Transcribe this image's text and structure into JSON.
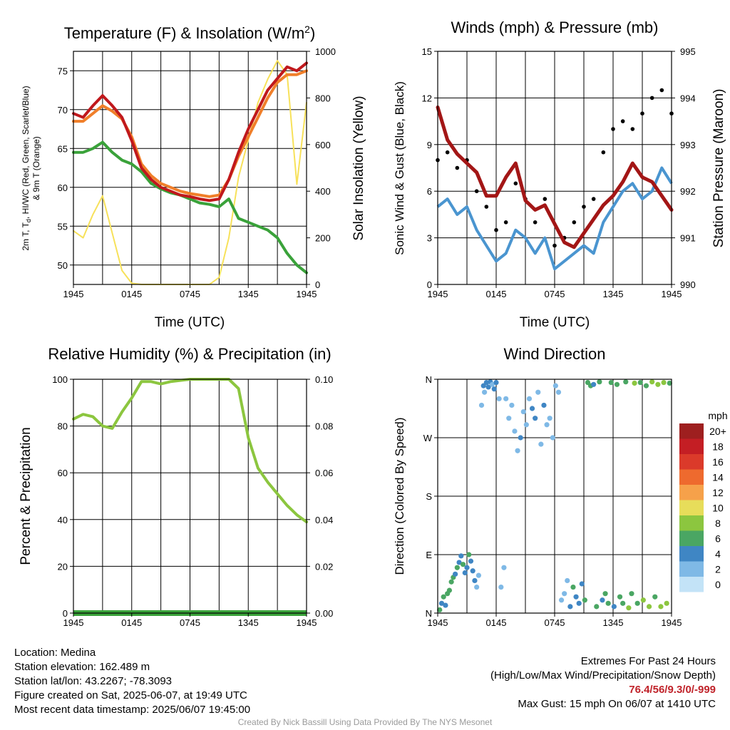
{
  "panels": {
    "temp": {
      "title": "Temperature (F) & Insolation (W/m",
      "title_sup": "2",
      "title_end": ")",
      "ylabel_left_1": "2m T, T",
      "ylabel_left_sub": "d",
      "ylabel_left_2": ", HI/WC (Red, Green, Scarlet/Blue)",
      "ylabel_left_3": "& 9m T (Orange)",
      "ylabel_right": "Solar Insolation (Yellow)",
      "xlabel": "Time (UTC)"
    },
    "winds": {
      "title": "Winds (mph) & Pressure (mb)",
      "ylabel_left": "Sonic Wind & Gust (Blue, Black)",
      "ylabel_right": "Station Pressure (Maroon)",
      "xlabel": "Time (UTC)"
    },
    "rh": {
      "title": "Relative Humidity (%) & Precipitation (in)",
      "ylabel_left": "Percent & Precipitation"
    },
    "dir": {
      "title": "Wind Direction",
      "ylabel_left": "Direction (Colored By Speed)"
    }
  },
  "chart_data": [
    {
      "type": "line",
      "title": "Temperature (F) & Insolation (W/m2)",
      "xlabel": "Time (UTC)",
      "x_ticks": [
        "1945",
        "0145",
        "0745",
        "1345",
        "1945"
      ],
      "x_hours_since_start": [
        0,
        1,
        2,
        3,
        4,
        5,
        6,
        7,
        8,
        9,
        10,
        11,
        12,
        13,
        14,
        15,
        16,
        17,
        18,
        19,
        20,
        21,
        22,
        23,
        24
      ],
      "ylim": [
        47.5,
        77.5
      ],
      "y_ticks": [
        50,
        55,
        60,
        65,
        70,
        75
      ],
      "y2lim": [
        0,
        1000
      ],
      "y2_ticks": [
        0,
        200,
        400,
        600,
        800,
        1000
      ],
      "series": [
        {
          "name": "2m T (Red)",
          "color": "#c0181c",
          "axis": "left",
          "values": [
            69.5,
            69.0,
            70.5,
            71.8,
            70.5,
            69.0,
            66.0,
            62.5,
            61.0,
            60.0,
            59.5,
            59.0,
            58.8,
            58.5,
            58.3,
            58.5,
            61.0,
            64.5,
            67.5,
            70.0,
            72.5,
            74.0,
            75.5,
            75.0,
            76.0
          ]
        },
        {
          "name": "9m T (Orange)",
          "color": "#f07f2a",
          "axis": "left",
          "values": [
            68.5,
            68.5,
            69.5,
            70.5,
            69.8,
            68.8,
            66.5,
            63.0,
            61.5,
            60.5,
            60.0,
            59.5,
            59.2,
            59.0,
            58.8,
            59.0,
            61.0,
            64.0,
            66.5,
            69.0,
            71.5,
            73.5,
            74.5,
            74.5,
            75.0
          ]
        },
        {
          "name": "Td (Green)",
          "color": "#3aa23a",
          "axis": "left",
          "values": [
            64.5,
            64.5,
            65.0,
            65.8,
            64.5,
            63.5,
            63.0,
            62.0,
            60.5,
            59.8,
            59.3,
            59.0,
            58.5,
            58.0,
            57.8,
            57.5,
            58.5,
            56.0,
            55.5,
            55.0,
            54.5,
            53.5,
            51.5,
            50.0,
            49.0
          ]
        },
        {
          "name": "Solar Insolation (Yellow)",
          "color": "#f7e15a",
          "axis": "right",
          "values": [
            230,
            200,
            300,
            380,
            220,
            60,
            5,
            0,
            0,
            0,
            0,
            0,
            0,
            0,
            0,
            30,
            200,
            460,
            620,
            780,
            880,
            960,
            900,
            430,
            780
          ]
        }
      ]
    },
    {
      "type": "line",
      "title": "Winds (mph) & Pressure (mb)",
      "xlabel": "Time (UTC)",
      "x_ticks": [
        "1945",
        "0145",
        "0745",
        "1345",
        "1945"
      ],
      "x_hours_since_start": [
        0,
        1,
        2,
        3,
        4,
        5,
        6,
        7,
        8,
        9,
        10,
        11,
        12,
        13,
        14,
        15,
        16,
        17,
        18,
        19,
        20,
        21,
        22,
        23,
        24
      ],
      "ylim": [
        0,
        15
      ],
      "y_ticks": [
        0,
        3,
        6,
        9,
        12,
        15
      ],
      "y2lim": [
        990,
        995
      ],
      "y2_ticks": [
        990,
        991,
        992,
        993,
        994,
        995
      ],
      "series": [
        {
          "name": "Sonic Wind (Blue)",
          "color": "#4a95d0",
          "axis": "left",
          "values": [
            5.0,
            5.5,
            4.5,
            5.0,
            3.5,
            2.5,
            1.5,
            2.0,
            3.5,
            3.0,
            2.0,
            3.0,
            1.0,
            1.5,
            2.0,
            2.5,
            2.0,
            4.0,
            5.0,
            6.0,
            6.5,
            5.5,
            6.0,
            7.5,
            6.5
          ]
        },
        {
          "name": "Gust (Black)",
          "color": "#000000",
          "axis": "left",
          "values": [
            8.0,
            8.5,
            7.5,
            8.0,
            6.0,
            5.0,
            3.5,
            4.0,
            6.5,
            5.5,
            4.0,
            5.5,
            2.5,
            3.0,
            4.0,
            5.0,
            5.5,
            8.5,
            10.0,
            10.5,
            10.0,
            11.0,
            12.0,
            12.5,
            11.0
          ]
        },
        {
          "name": "Station Pressure (Maroon)",
          "color": "#a31616",
          "axis": "right",
          "values": [
            993.8,
            993.1,
            992.8,
            992.6,
            992.4,
            991.9,
            991.9,
            992.3,
            992.6,
            991.8,
            991.6,
            991.7,
            991.3,
            990.9,
            990.8,
            991.1,
            991.4,
            991.7,
            991.9,
            992.2,
            992.6,
            992.3,
            992.2,
            991.9,
            991.6
          ]
        }
      ]
    },
    {
      "type": "line",
      "title": "Relative Humidity (%) & Precipitation (in)",
      "x_ticks": [
        "1945",
        "0145",
        "0745",
        "1345",
        "1945"
      ],
      "x_hours_since_start": [
        0,
        1,
        2,
        3,
        4,
        5,
        6,
        7,
        8,
        9,
        10,
        11,
        12,
        13,
        14,
        15,
        16,
        17,
        18,
        19,
        20,
        21,
        22,
        23,
        24
      ],
      "ylim": [
        0,
        100
      ],
      "y_ticks": [
        0,
        20,
        40,
        60,
        80,
        100
      ],
      "y2lim": [
        0,
        0.1
      ],
      "y2_ticks": [
        "0.00",
        "0.02",
        "0.04",
        "0.06",
        "0.08",
        "0.10"
      ],
      "series": [
        {
          "name": "Relative Humidity",
          "color": "#8cc63f",
          "axis": "left",
          "values": [
            83,
            85,
            84,
            80,
            79,
            86,
            92,
            99,
            99,
            98,
            99,
            99.5,
            100,
            100,
            100,
            100,
            100,
            96,
            75,
            62,
            56,
            51,
            46,
            42,
            39
          ]
        },
        {
          "name": "Precipitation",
          "color": "#3aa23a",
          "axis": "right",
          "values": [
            0,
            0,
            0,
            0,
            0,
            0,
            0,
            0,
            0,
            0,
            0,
            0,
            0,
            0,
            0,
            0,
            0,
            0,
            0,
            0,
            0,
            0,
            0,
            0,
            0
          ]
        }
      ]
    },
    {
      "type": "scatter",
      "title": "Wind Direction",
      "x_ticks": [
        "1945",
        "0145",
        "0745",
        "1345",
        "1945"
      ],
      "y_ticks": [
        "N",
        "E",
        "S",
        "W",
        "N"
      ],
      "ylim": [
        0,
        360
      ],
      "legend_title": "mph",
      "legend_labels": [
        "20+",
        "18",
        "16",
        "14",
        "12",
        "10",
        "8",
        "6",
        "4",
        "2",
        "0"
      ],
      "legend_colors": [
        "#9e1f1f",
        "#c41e24",
        "#db3a2a",
        "#ee6a2e",
        "#f6a14a",
        "#e7dd5a",
        "#8cc63f",
        "#4aa663",
        "#3f86c4",
        "#7fb9e6",
        "#c3e3f7"
      ],
      "points_hour_deg_mph": [
        [
          0.2,
          5,
          6
        ],
        [
          0.4,
          15,
          4
        ],
        [
          0.6,
          25,
          6
        ],
        [
          0.8,
          12,
          4
        ],
        [
          1.0,
          30,
          5
        ],
        [
          1.2,
          35,
          6
        ],
        [
          1.4,
          48,
          5
        ],
        [
          1.6,
          55,
          6
        ],
        [
          1.8,
          60,
          4
        ],
        [
          2.0,
          70,
          5
        ],
        [
          2.2,
          78,
          4
        ],
        [
          2.4,
          88,
          3
        ],
        [
          2.6,
          75,
          5
        ],
        [
          2.8,
          62,
          4
        ],
        [
          3.0,
          70,
          3
        ],
        [
          3.2,
          90,
          5
        ],
        [
          3.4,
          80,
          4
        ],
        [
          3.6,
          65,
          3
        ],
        [
          3.8,
          50,
          3
        ],
        [
          4.0,
          40,
          2
        ],
        [
          4.2,
          58,
          2
        ],
        [
          4.5,
          320,
          2
        ],
        [
          4.7,
          350,
          3
        ],
        [
          4.8,
          340,
          2
        ],
        [
          5.0,
          355,
          3
        ],
        [
          5.2,
          348,
          4
        ],
        [
          5.4,
          356,
          3
        ],
        [
          5.6,
          352,
          2
        ],
        [
          5.8,
          345,
          3
        ],
        [
          6.0,
          355,
          4
        ],
        [
          6.3,
          330,
          2
        ],
        [
          6.5,
          40,
          1
        ],
        [
          6.8,
          70,
          1
        ],
        [
          7.0,
          330,
          2
        ],
        [
          7.3,
          300,
          2
        ],
        [
          7.6,
          320,
          2
        ],
        [
          7.9,
          280,
          1
        ],
        [
          8.2,
          250,
          2
        ],
        [
          8.5,
          270,
          3
        ],
        [
          8.8,
          310,
          2
        ],
        [
          9.1,
          290,
          1
        ],
        [
          9.4,
          330,
          2
        ],
        [
          9.7,
          315,
          3
        ],
        [
          10.0,
          300,
          4
        ],
        [
          10.3,
          340,
          2
        ],
        [
          10.6,
          260,
          2
        ],
        [
          10.9,
          320,
          3
        ],
        [
          11.2,
          290,
          1
        ],
        [
          11.5,
          300,
          2
        ],
        [
          11.8,
          270,
          1
        ],
        [
          12.1,
          350,
          1
        ],
        [
          12.4,
          340,
          2
        ],
        [
          12.7,
          20,
          1
        ],
        [
          13.0,
          30,
          2
        ],
        [
          13.3,
          50,
          2
        ],
        [
          13.6,
          10,
          4
        ],
        [
          13.9,
          40,
          5
        ],
        [
          14.2,
          25,
          3
        ],
        [
          14.5,
          15,
          4
        ],
        [
          14.8,
          45,
          3
        ],
        [
          15.1,
          20,
          5
        ],
        [
          15.4,
          355,
          6
        ],
        [
          15.7,
          350,
          5
        ],
        [
          16.0,
          352,
          4
        ],
        [
          16.3,
          10,
          5
        ],
        [
          16.6,
          356,
          6
        ],
        [
          16.9,
          20,
          4
        ],
        [
          17.2,
          30,
          6
        ],
        [
          17.5,
          15,
          5
        ],
        [
          17.8,
          355,
          6
        ],
        [
          18.1,
          10,
          4
        ],
        [
          18.4,
          352,
          5
        ],
        [
          18.7,
          25,
          6
        ],
        [
          19.0,
          15,
          5
        ],
        [
          19.3,
          356,
          6
        ],
        [
          19.6,
          8,
          7
        ],
        [
          19.9,
          30,
          6
        ],
        [
          20.2,
          354,
          7
        ],
        [
          20.5,
          15,
          6
        ],
        [
          20.8,
          355,
          5
        ],
        [
          21.1,
          20,
          7
        ],
        [
          21.4,
          350,
          6
        ],
        [
          21.7,
          10,
          8
        ],
        [
          22.0,
          356,
          7
        ],
        [
          22.3,
          25,
          6
        ],
        [
          22.6,
          352,
          7
        ],
        [
          22.9,
          10,
          8
        ],
        [
          23.2,
          355,
          7
        ],
        [
          23.5,
          15,
          7
        ],
        [
          23.8,
          354,
          6
        ]
      ]
    }
  ],
  "footer": {
    "location": "Location: Medina",
    "elevation": "Station elevation: 162.489 m",
    "latlon": "Station lat/lon: 43.2267; -78.3093",
    "created": "Figure created on Sat, 2025-06-07, at 19:49 UTC",
    "recent": "Most recent data timestamp: 2025/06/07 19:45:00",
    "extremes_title": "Extremes For Past 24 Hours",
    "extremes_sub": "(High/Low/Max Wind/Precipitation/Snow Depth)",
    "extremes_values": "76.4/56/9.3/0/-999",
    "max_gust": "Max Gust: 15 mph On 06/07 at 1410 UTC",
    "credit": "Created By Nick Bassill Using Data Provided By The NYS Mesonet"
  }
}
